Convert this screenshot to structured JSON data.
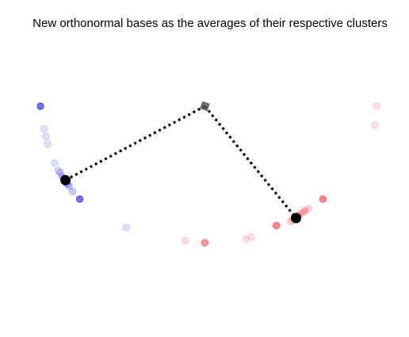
{
  "chart_data": {
    "type": "scatter",
    "title": "New orthonormal bases as the averages of their respective clusters",
    "xlabel": "",
    "ylabel": "",
    "axes_visible": false,
    "grid": false,
    "xlim": [
      -1.0,
      1.0
    ],
    "ylim": [
      -0.2,
      1.0
    ],
    "origin": {
      "x": 0.0,
      "y": 0.9,
      "marker": "square",
      "color": "#555555"
    },
    "series": [
      {
        "color": "#0000ff",
        "points": [
          {
            "x": -0.92,
            "y": 0.9,
            "alpha": 0.55
          },
          {
            "x": -0.9,
            "y": 0.78,
            "alpha": 0.12
          },
          {
            "x": -0.89,
            "y": 0.74,
            "alpha": 0.12
          },
          {
            "x": -0.88,
            "y": 0.7,
            "alpha": 0.12
          },
          {
            "x": -0.84,
            "y": 0.6,
            "alpha": 0.12
          },
          {
            "x": -0.82,
            "y": 0.56,
            "alpha": 0.15
          },
          {
            "x": -0.81,
            "y": 0.55,
            "alpha": 0.15
          },
          {
            "x": -0.8,
            "y": 0.53,
            "alpha": 0.18
          },
          {
            "x": -0.79,
            "y": 0.52,
            "alpha": 0.25
          },
          {
            "x": -0.78,
            "y": 0.51,
            "alpha": 0.25
          },
          {
            "x": -0.78,
            "y": 0.5,
            "alpha": 0.2
          },
          {
            "x": -0.77,
            "y": 0.49,
            "alpha": 0.2
          },
          {
            "x": -0.76,
            "y": 0.48,
            "alpha": 0.22
          },
          {
            "x": -0.74,
            "y": 0.45,
            "alpha": 0.2
          },
          {
            "x": -0.7,
            "y": 0.41,
            "alpha": 0.55
          },
          {
            "x": -0.44,
            "y": 0.26,
            "alpha": 0.12
          }
        ],
        "mean": {
          "x": -0.78,
          "y": 0.51
        }
      },
      {
        "color": "#ff0000",
        "points": [
          {
            "x": 0.96,
            "y": 0.9,
            "alpha": 0.12
          },
          {
            "x": 0.95,
            "y": 0.8,
            "alpha": 0.12
          },
          {
            "x": 0.66,
            "y": 0.41,
            "alpha": 0.45
          },
          {
            "x": 0.58,
            "y": 0.36,
            "alpha": 0.15
          },
          {
            "x": 0.56,
            "y": 0.35,
            "alpha": 0.18
          },
          {
            "x": 0.55,
            "y": 0.34,
            "alpha": 0.2
          },
          {
            "x": 0.53,
            "y": 0.33,
            "alpha": 0.2
          },
          {
            "x": 0.52,
            "y": 0.32,
            "alpha": 0.18
          },
          {
            "x": 0.5,
            "y": 0.31,
            "alpha": 0.18
          },
          {
            "x": 0.49,
            "y": 0.3,
            "alpha": 0.15
          },
          {
            "x": 0.48,
            "y": 0.29,
            "alpha": 0.15
          },
          {
            "x": 0.4,
            "y": 0.27,
            "alpha": 0.45
          },
          {
            "x": 0.26,
            "y": 0.21,
            "alpha": 0.12
          },
          {
            "x": 0.23,
            "y": 0.2,
            "alpha": 0.12
          },
          {
            "x": 0.0,
            "y": 0.18,
            "alpha": 0.4
          },
          {
            "x": -0.11,
            "y": 0.19,
            "alpha": 0.12
          }
        ],
        "mean": {
          "x": 0.51,
          "y": 0.31
        }
      }
    ]
  }
}
